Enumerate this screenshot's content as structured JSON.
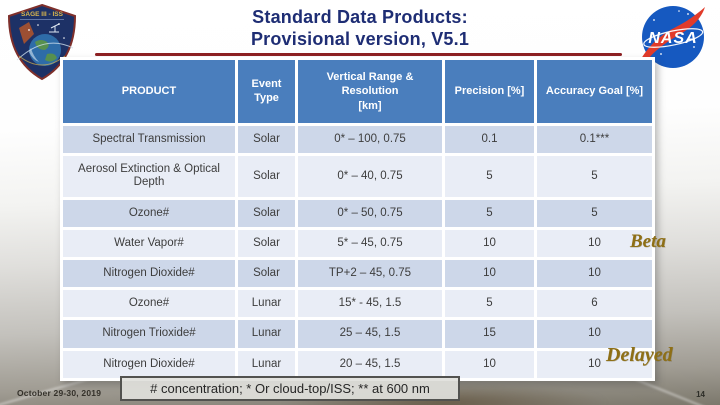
{
  "slide": {
    "title": {
      "line1": "Standard Data Products:",
      "line2": "Provisional version, V5.1"
    },
    "footnote": "# concentration; * Or cloud-top/ISS; ** at 600 nm",
    "footer": {
      "date": "October 29-30, 2019",
      "page_number": "14"
    }
  },
  "logos": {
    "sage_patch_label": "SAGE III - ISS",
    "nasa_label": "NASA"
  },
  "annotations": [
    {
      "label": "Beta"
    },
    {
      "label": "Delayed"
    }
  ],
  "table": {
    "headers": [
      "PRODUCT",
      "Event\nType",
      "Vertical Range &\nResolution\n[km]",
      "Precision [%]",
      "Accuracy Goal [%]"
    ],
    "rows": [
      {
        "product": "Spectral Transmission",
        "event": "Solar",
        "range": "0* – 100, 0.75",
        "precision": "0.1",
        "accuracy": "0.1***"
      },
      {
        "product": "Aerosol Extinction & Optical Depth",
        "event": "Solar",
        "range": "0* – 40, 0.75",
        "precision": "5",
        "accuracy": "5"
      },
      {
        "product": "Ozone#",
        "event": "Solar",
        "range": "0* – 50, 0.75",
        "precision": "5",
        "accuracy": "5"
      },
      {
        "product": "Water Vapor#",
        "event": "Solar",
        "range": "5* – 45, 0.75",
        "precision": "10",
        "accuracy": "10"
      },
      {
        "product": "Nitrogen Dioxide#",
        "event": "Solar",
        "range": "TP+2 – 45, 0.75",
        "precision": "10",
        "accuracy": "10"
      },
      {
        "product": "Ozone#",
        "event": "Lunar",
        "range": "15* - 45, 1.5",
        "precision": "5",
        "accuracy": "6"
      },
      {
        "product": "Nitrogen Trioxide#",
        "event": "Lunar",
        "range": "25 – 45, 1.5",
        "precision": "15",
        "accuracy": "10"
      },
      {
        "product": "Nitrogen Dioxide#",
        "event": "Lunar",
        "range": "20 – 45, 1.5",
        "precision": "10",
        "accuracy": "10"
      }
    ]
  },
  "colors": {
    "header_blue": "#4a7ebd",
    "row_dark": "#cdd7e9",
    "row_light": "#e9edf6",
    "title_navy": "#1e2d74",
    "rule_red": "#8e2023",
    "annotation_gold": "#8e6f16"
  }
}
